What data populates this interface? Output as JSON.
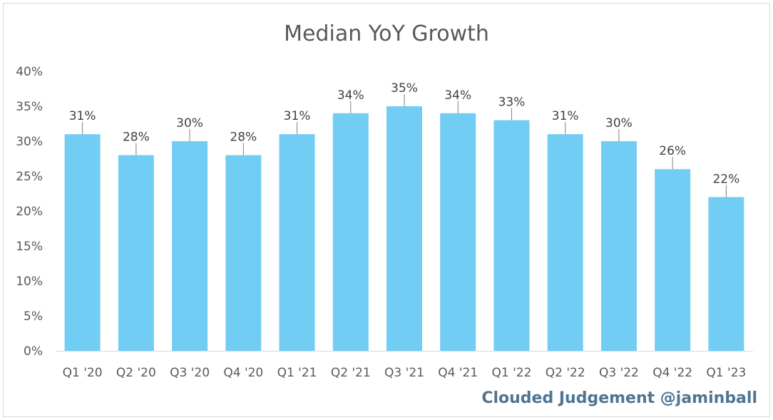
{
  "chart_data": {
    "type": "bar",
    "title": "Median YoY Growth",
    "categories": [
      "Q1 '20",
      "Q2 '20",
      "Q3 '20",
      "Q4 '20",
      "Q1 '21",
      "Q2 '21",
      "Q3 '21",
      "Q4 '21",
      "Q1 '22",
      "Q2 '22",
      "Q3 '22",
      "Q4 '22",
      "Q1 '23"
    ],
    "values": [
      31,
      28,
      30,
      28,
      31,
      34,
      35,
      34,
      33,
      31,
      30,
      26,
      22
    ],
    "data_labels": [
      "31%",
      "28%",
      "30%",
      "28%",
      "31%",
      "34%",
      "35%",
      "34%",
      "33%",
      "31%",
      "30%",
      "26%",
      "22%"
    ],
    "y_ticks": [
      "0%",
      "5%",
      "10%",
      "15%",
      "20%",
      "25%",
      "30%",
      "35%",
      "40%"
    ],
    "ylim": [
      0,
      40
    ],
    "xlabel": "",
    "ylabel": "",
    "grid": false,
    "legend": "none",
    "bar_color": "#72cdf4"
  },
  "watermark": "Clouded Judgement @jaminball"
}
